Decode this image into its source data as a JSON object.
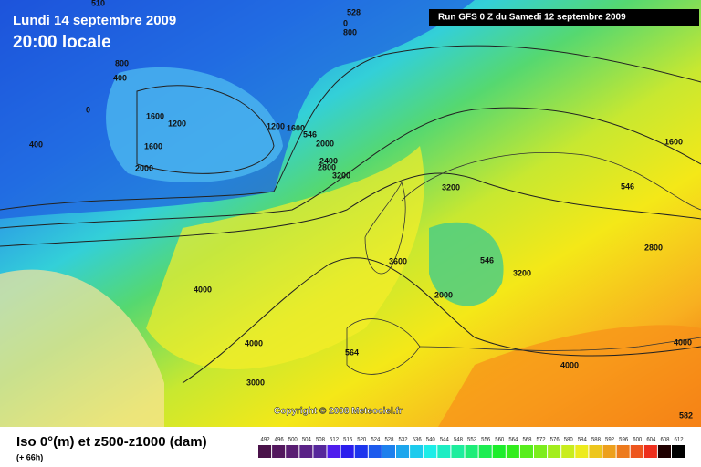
{
  "header": {
    "date": "Lundi 14 septembre 2009",
    "time": "20:00 locale",
    "run": "Run GFS 0 Z du Samedi 12 septembre 2009"
  },
  "map": {
    "labels": [
      "510",
      "528",
      "0",
      "800",
      "800",
      "400",
      "0",
      "400",
      "1600",
      "1200",
      "1600",
      "2000",
      "1200",
      "1600",
      "546",
      "2000",
      "2400",
      "2800",
      "3200",
      "1600",
      "546",
      "3200",
      "3600",
      "546",
      "3200",
      "2800",
      "2000",
      "4000",
      "4000",
      "3000",
      "564",
      "4000",
      "4000",
      "582"
    ]
  },
  "copyright": "Copyright © 2008 Meteociel.fr",
  "footer": {
    "title": "Iso 0°(m) et z500-z1000 (dam)",
    "forecast": "(+ 66h)"
  },
  "scale": {
    "values": [
      492,
      496,
      500,
      504,
      508,
      512,
      516,
      520,
      524,
      528,
      532,
      536,
      540,
      544,
      548,
      552,
      556,
      560,
      564,
      568,
      572,
      576,
      580,
      584,
      588,
      592,
      596,
      600,
      604,
      608,
      612
    ]
  }
}
